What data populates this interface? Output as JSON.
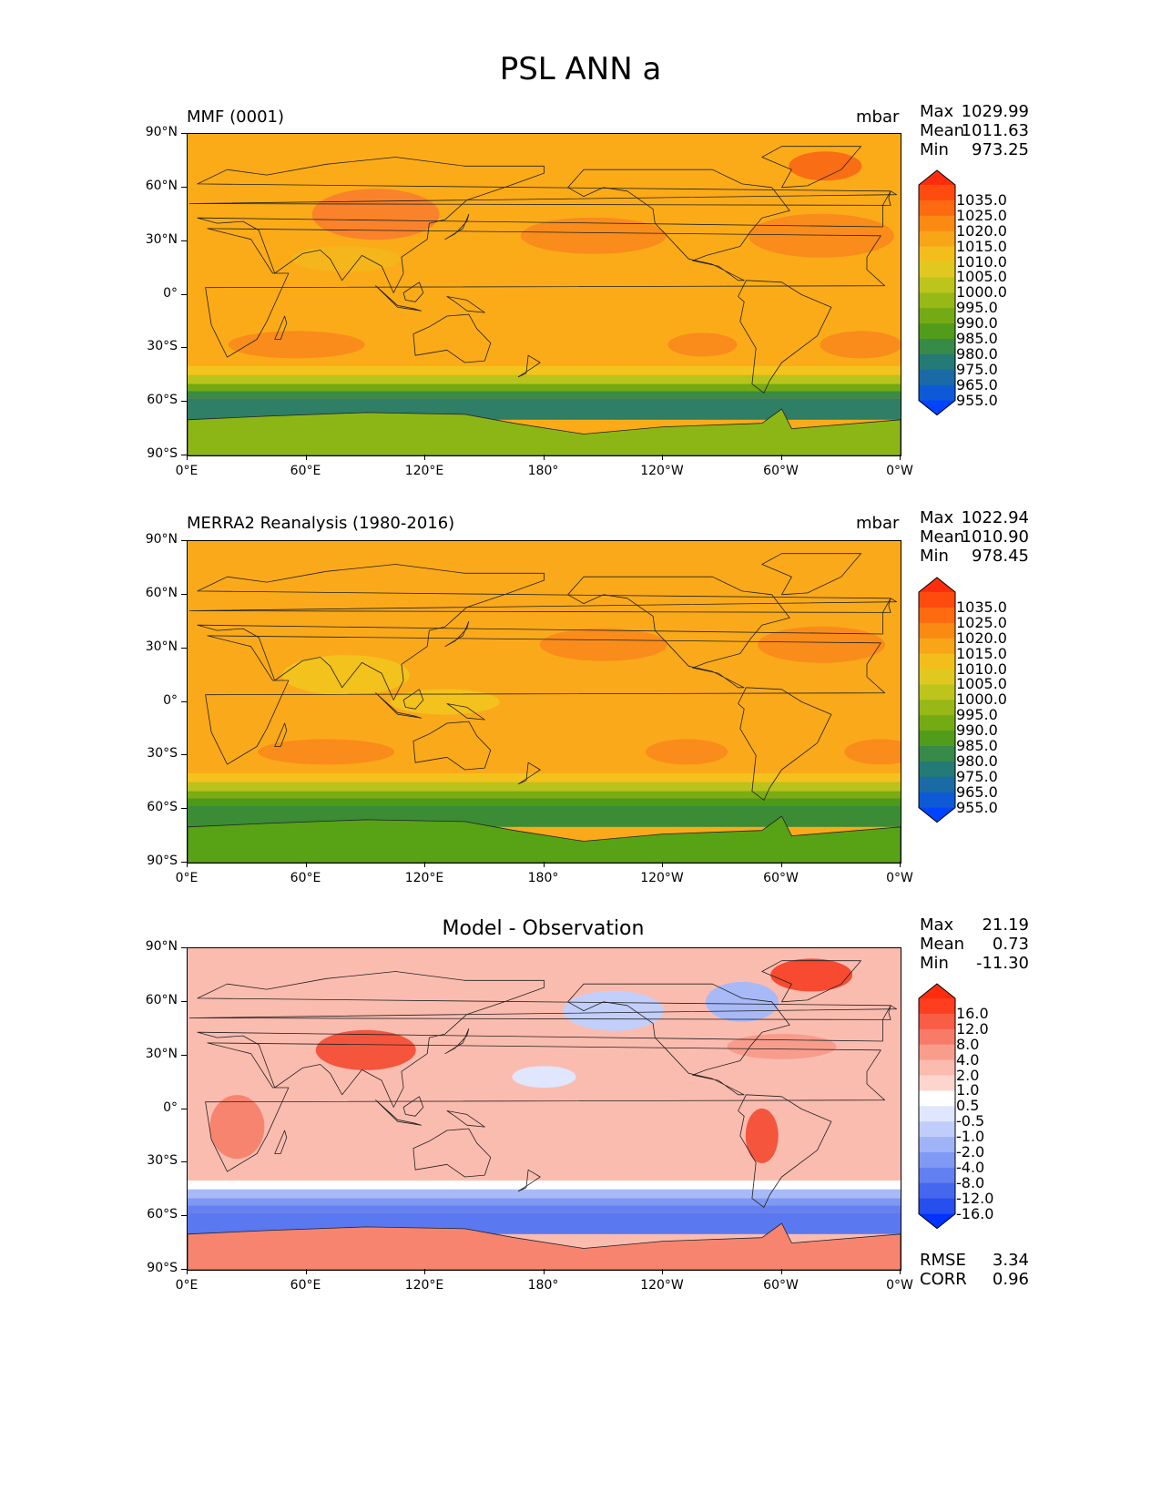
{
  "title": "PSL ANN a",
  "ticks": {
    "y": [
      "90°N",
      "60°N",
      "30°N",
      "0°",
      "30°S",
      "60°S",
      "90°S"
    ],
    "x": [
      "0°E",
      "60°E",
      "120°E",
      "180°",
      "120°W",
      "60°W",
      "0°W"
    ]
  },
  "panels": [
    {
      "title": "MMF (0001)",
      "units": "mbar",
      "stats": [
        {
          "label": "Max",
          "value": "1029.99"
        },
        {
          "label": "Mean",
          "value": "1011.63"
        },
        {
          "label": "Min",
          "value": "973.25"
        }
      ],
      "colorbar": {
        "labels": [
          "1035.0",
          "1025.0",
          "1020.0",
          "1015.0",
          "1010.0",
          "1005.0",
          "1000.0",
          "995.0",
          "990.0",
          "985.0",
          "980.0",
          "975.0",
          "965.0",
          "955.0"
        ],
        "colors": [
          "#ff2d0d",
          "#ff4b0e",
          "#fd6a10",
          "#fb8a13",
          "#f9a518",
          "#f3be1c",
          "#e1c820",
          "#bdc41b",
          "#97b816",
          "#74aa14",
          "#519c1b",
          "#378a48",
          "#247a74",
          "#1a6aa5",
          "#0e5ad6",
          "#0044ff"
        ]
      },
      "map": {
        "base": "#fbab18",
        "south_band": [
          "#f3c41c",
          "#b9c31b",
          "#73a913",
          "#3a8b44",
          "#2f7e66"
        ],
        "antarctic": "#8cb616"
      }
    },
    {
      "title": "MERRA2 Reanalysis (1980-2016)",
      "units": "mbar",
      "stats": [
        {
          "label": "Max",
          "value": "1022.94"
        },
        {
          "label": "Mean",
          "value": "1010.90"
        },
        {
          "label": "Min",
          "value": "978.45"
        }
      ],
      "colorbar": {
        "labels": [
          "1035.0",
          "1025.0",
          "1020.0",
          "1015.0",
          "1010.0",
          "1005.0",
          "1000.0",
          "995.0",
          "990.0",
          "985.0",
          "980.0",
          "975.0",
          "965.0",
          "955.0"
        ],
        "colors": [
          "#ff2d0d",
          "#ff4b0e",
          "#fd6a10",
          "#fb8a13",
          "#f9a518",
          "#f3be1c",
          "#e1c820",
          "#bdc41b",
          "#97b816",
          "#74aa14",
          "#519c1b",
          "#378a48",
          "#247a74",
          "#1a6aa5",
          "#0e5ad6",
          "#0044ff"
        ]
      },
      "map": {
        "base": "#faa91a",
        "south_band": [
          "#f3c21c",
          "#b9c31b",
          "#7bac14",
          "#4d9a1a",
          "#3b8c35"
        ],
        "antarctic": "#58a216"
      }
    },
    {
      "title": "Model - Observation",
      "units": "",
      "stats": [
        {
          "label": "Max",
          "value": "21.19"
        },
        {
          "label": "Mean",
          "value": "0.73"
        },
        {
          "label": "Min",
          "value": "-11.30"
        }
      ],
      "colorbar": {
        "labels": [
          "16.0",
          "12.0",
          "8.0",
          "4.0",
          "2.0",
          "1.0",
          "0.5",
          "-0.5",
          "-1.0",
          "-2.0",
          "-4.0",
          "-8.0",
          "-12.0",
          "-16.0"
        ],
        "colors": [
          "#ff2d0d",
          "#ff3e1f",
          "#f95d46",
          "#f77b68",
          "#f89d8c",
          "#fbbbae",
          "#fdd5cc",
          "#ffffff",
          "#dfe6fd",
          "#c0cdfa",
          "#a0b3f7",
          "#8099f4",
          "#6380f2",
          "#4566ef",
          "#274eee",
          "#0033ff"
        ]
      },
      "map": {
        "base": "#fbbcb0",
        "south_band": [
          "#ffffff",
          "#a8b9f7",
          "#7f98f3",
          "#6581f1",
          "#5a78f0"
        ],
        "antarctic": "#f7846f"
      },
      "metrics": [
        {
          "label": "RMSE",
          "value": "3.34"
        },
        {
          "label": "CORR",
          "value": "0.96"
        }
      ]
    }
  ]
}
